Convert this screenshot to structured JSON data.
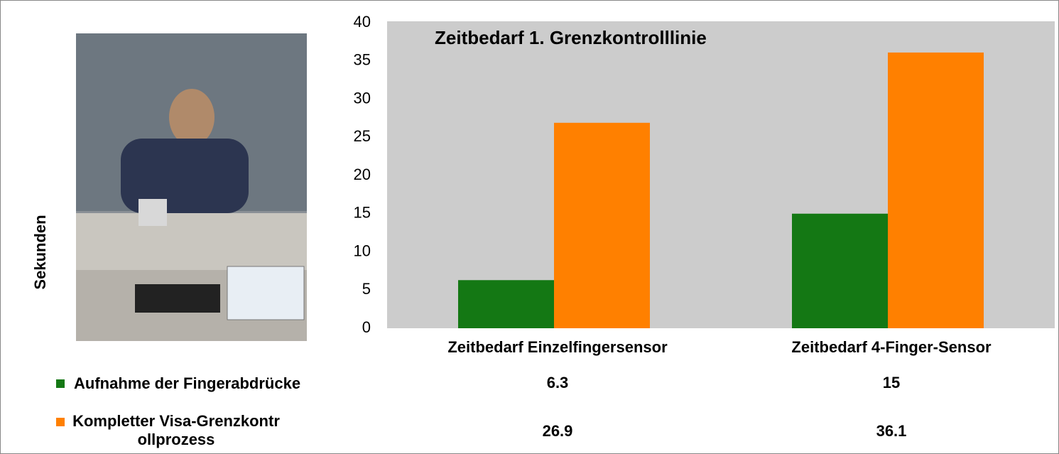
{
  "chart_data": {
    "type": "bar",
    "title": "Zeitbedarf 1. Grenzkontrolllinie",
    "y_label": "Sekunden",
    "categories": [
      "Zeitbedarf Einzelfingersensor",
      "Zeitbedarf 4-Finger-Sensor"
    ],
    "series": [
      {
        "name": "Aufnahme der Fingerabdrücke",
        "color": "#147814",
        "values": [
          6.3,
          15
        ]
      },
      {
        "name": "Kompletter Visa-Grenzkontrollprozess",
        "color": "#ff8000",
        "values": [
          26.9,
          36.1
        ]
      }
    ],
    "ylim": [
      0,
      40
    ],
    "yticks": [
      0,
      5,
      10,
      15,
      20,
      25,
      30,
      35,
      40
    ],
    "grid": false
  }
}
